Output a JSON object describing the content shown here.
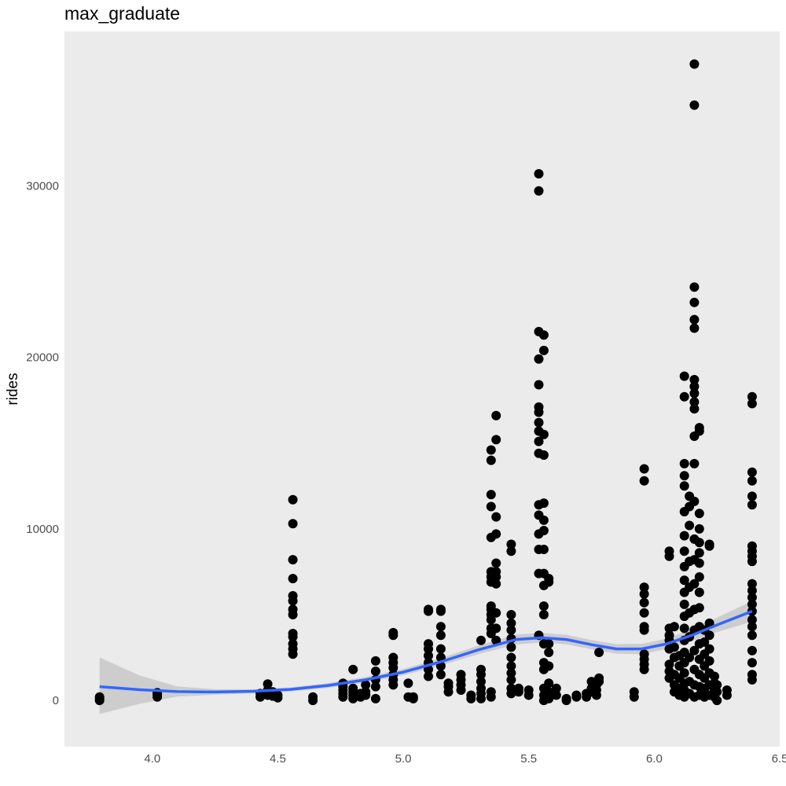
{
  "chart_data": {
    "type": "scatter",
    "title": "max_graduate",
    "xlabel": "",
    "ylabel": "rides",
    "xlim": [
      3.65,
      6.5
    ],
    "ylim": [
      -2700,
      39000
    ],
    "x_ticks": [
      "4.0",
      "4.5",
      "5.0",
      "5.5",
      "6.0",
      "6.5"
    ],
    "x_tick_values": [
      4.0,
      4.5,
      5.0,
      5.5,
      6.0,
      6.5
    ],
    "y_ticks": [
      "0",
      "10000",
      "20000",
      "30000"
    ],
    "y_tick_values": [
      0,
      10000,
      20000,
      30000
    ],
    "grid": false,
    "colors": {
      "panel": "#ebebeb",
      "points": "#000000",
      "smooth_line": "#3366ff",
      "confidence_band": "#c8c8c8"
    },
    "points": [
      [
        3.79,
        0
      ],
      [
        3.79,
        100
      ],
      [
        3.79,
        200
      ],
      [
        4.02,
        200
      ],
      [
        4.02,
        350
      ],
      [
        4.02,
        450
      ],
      [
        4.43,
        200
      ],
      [
        4.43,
        400
      ],
      [
        4.46,
        300
      ],
      [
        4.46,
        600
      ],
      [
        4.46,
        950
      ],
      [
        4.48,
        250
      ],
      [
        4.48,
        500
      ],
      [
        4.5,
        150
      ],
      [
        4.5,
        300
      ],
      [
        4.56,
        2700
      ],
      [
        4.56,
        3000
      ],
      [
        4.56,
        3300
      ],
      [
        4.56,
        3700
      ],
      [
        4.56,
        3900
      ],
      [
        4.56,
        5000
      ],
      [
        4.56,
        5300
      ],
      [
        4.56,
        5800
      ],
      [
        4.56,
        6100
      ],
      [
        4.56,
        7100
      ],
      [
        4.56,
        8200
      ],
      [
        4.56,
        10300
      ],
      [
        4.56,
        11700
      ],
      [
        4.64,
        0
      ],
      [
        4.64,
        200
      ],
      [
        4.76,
        200
      ],
      [
        4.76,
        400
      ],
      [
        4.76,
        600
      ],
      [
        4.76,
        800
      ],
      [
        4.76,
        1000
      ],
      [
        4.8,
        100
      ],
      [
        4.8,
        300
      ],
      [
        4.8,
        500
      ],
      [
        4.8,
        700
      ],
      [
        4.8,
        1800
      ],
      [
        4.83,
        200
      ],
      [
        4.83,
        400
      ],
      [
        4.85,
        300
      ],
      [
        4.85,
        500
      ],
      [
        4.85,
        900
      ],
      [
        4.89,
        100
      ],
      [
        4.89,
        800
      ],
      [
        4.89,
        1200
      ],
      [
        4.89,
        1700
      ],
      [
        4.89,
        2300
      ],
      [
        4.96,
        900
      ],
      [
        4.96,
        1200
      ],
      [
        4.96,
        1500
      ],
      [
        4.96,
        1900
      ],
      [
        4.96,
        2200
      ],
      [
        4.96,
        2500
      ],
      [
        4.96,
        3800
      ],
      [
        4.96,
        3950
      ],
      [
        5.02,
        200
      ],
      [
        5.02,
        1000
      ],
      [
        5.04,
        100
      ],
      [
        5.04,
        200
      ],
      [
        5.1,
        1400
      ],
      [
        5.1,
        1800
      ],
      [
        5.1,
        2200
      ],
      [
        5.1,
        2600
      ],
      [
        5.1,
        3000
      ],
      [
        5.1,
        3300
      ],
      [
        5.1,
        5200
      ],
      [
        5.1,
        5300
      ],
      [
        5.15,
        1500
      ],
      [
        5.15,
        2000
      ],
      [
        5.15,
        2500
      ],
      [
        5.15,
        3000
      ],
      [
        5.15,
        3800
      ],
      [
        5.15,
        4300
      ],
      [
        5.15,
        5200
      ],
      [
        5.15,
        5300
      ],
      [
        5.18,
        500
      ],
      [
        5.18,
        800
      ],
      [
        5.18,
        1000
      ],
      [
        5.23,
        600
      ],
      [
        5.23,
        900
      ],
      [
        5.23,
        1200
      ],
      [
        5.23,
        1500
      ],
      [
        5.27,
        100
      ],
      [
        5.27,
        300
      ],
      [
        5.31,
        100
      ],
      [
        5.31,
        400
      ],
      [
        5.31,
        700
      ],
      [
        5.31,
        1100
      ],
      [
        5.31,
        1500
      ],
      [
        5.31,
        1800
      ],
      [
        5.31,
        3500
      ],
      [
        5.35,
        200
      ],
      [
        5.35,
        500
      ],
      [
        5.35,
        3900
      ],
      [
        5.35,
        4200
      ],
      [
        5.35,
        4700
      ],
      [
        5.35,
        5000
      ],
      [
        5.35,
        5300
      ],
      [
        5.35,
        5500
      ],
      [
        5.35,
        6900
      ],
      [
        5.35,
        7200
      ],
      [
        5.35,
        7500
      ],
      [
        5.35,
        9500
      ],
      [
        5.35,
        11300
      ],
      [
        5.35,
        12000
      ],
      [
        5.35,
        14000
      ],
      [
        5.35,
        14600
      ],
      [
        5.37,
        3500
      ],
      [
        5.37,
        4200
      ],
      [
        5.37,
        5100
      ],
      [
        5.37,
        6800
      ],
      [
        5.37,
        7200
      ],
      [
        5.37,
        7500
      ],
      [
        5.37,
        8000
      ],
      [
        5.37,
        9700
      ],
      [
        5.37,
        10700
      ],
      [
        5.37,
        15200
      ],
      [
        5.37,
        16600
      ],
      [
        5.43,
        400
      ],
      [
        5.43,
        700
      ],
      [
        5.43,
        1200
      ],
      [
        5.43,
        1600
      ],
      [
        5.43,
        2000
      ],
      [
        5.43,
        2500
      ],
      [
        5.43,
        3100
      ],
      [
        5.43,
        3600
      ],
      [
        5.43,
        4100
      ],
      [
        5.43,
        4500
      ],
      [
        5.43,
        5000
      ],
      [
        5.43,
        8700
      ],
      [
        5.43,
        9100
      ],
      [
        5.46,
        500
      ],
      [
        5.46,
        700
      ],
      [
        5.5,
        300
      ],
      [
        5.5,
        600
      ],
      [
        5.54,
        3800
      ],
      [
        5.54,
        7400
      ],
      [
        5.54,
        8800
      ],
      [
        5.54,
        9700
      ],
      [
        5.54,
        10800
      ],
      [
        5.54,
        11400
      ],
      [
        5.54,
        14400
      ],
      [
        5.54,
        15100
      ],
      [
        5.54,
        15700
      ],
      [
        5.54,
        16200
      ],
      [
        5.54,
        16800
      ],
      [
        5.54,
        17100
      ],
      [
        5.54,
        18400
      ],
      [
        5.54,
        19900
      ],
      [
        5.54,
        21500
      ],
      [
        5.54,
        29700
      ],
      [
        5.54,
        30700
      ],
      [
        5.56,
        0
      ],
      [
        5.56,
        300
      ],
      [
        5.56,
        700
      ],
      [
        5.56,
        1800
      ],
      [
        5.56,
        2200
      ],
      [
        5.56,
        3300
      ],
      [
        5.56,
        5000
      ],
      [
        5.56,
        5500
      ],
      [
        5.56,
        6700
      ],
      [
        5.56,
        7400
      ],
      [
        5.56,
        8800
      ],
      [
        5.56,
        9900
      ],
      [
        5.56,
        10500
      ],
      [
        5.56,
        11500
      ],
      [
        5.56,
        14300
      ],
      [
        5.56,
        15500
      ],
      [
        5.56,
        20400
      ],
      [
        5.56,
        21300
      ],
      [
        5.58,
        100
      ],
      [
        5.58,
        500
      ],
      [
        5.58,
        1000
      ],
      [
        5.58,
        2000
      ],
      [
        5.58,
        2800
      ],
      [
        5.58,
        3300
      ],
      [
        5.58,
        6900
      ],
      [
        5.58,
        7100
      ],
      [
        5.61,
        300
      ],
      [
        5.61,
        700
      ],
      [
        5.65,
        0
      ],
      [
        5.65,
        100
      ],
      [
        5.69,
        200
      ],
      [
        5.69,
        300
      ],
      [
        5.73,
        200
      ],
      [
        5.73,
        400
      ],
      [
        5.75,
        500
      ],
      [
        5.75,
        700
      ],
      [
        5.75,
        1100
      ],
      [
        5.77,
        300
      ],
      [
        5.77,
        600
      ],
      [
        5.77,
        900
      ],
      [
        5.78,
        1100
      ],
      [
        5.78,
        1300
      ],
      [
        5.78,
        2800
      ],
      [
        5.92,
        200
      ],
      [
        5.92,
        500
      ],
      [
        5.96,
        1800
      ],
      [
        5.96,
        2100
      ],
      [
        5.96,
        2400
      ],
      [
        5.96,
        2700
      ],
      [
        5.96,
        4100
      ],
      [
        5.96,
        4300
      ],
      [
        5.96,
        5100
      ],
      [
        5.96,
        5700
      ],
      [
        5.96,
        6200
      ],
      [
        5.96,
        6600
      ],
      [
        5.96,
        12800
      ],
      [
        5.96,
        13500
      ],
      [
        6.06,
        1300
      ],
      [
        6.06,
        1700
      ],
      [
        6.06,
        2100
      ],
      [
        6.06,
        3000
      ],
      [
        6.06,
        3500
      ],
      [
        6.06,
        3800
      ],
      [
        6.06,
        4200
      ],
      [
        6.06,
        8400
      ],
      [
        6.06,
        8700
      ],
      [
        6.08,
        500
      ],
      [
        6.08,
        900
      ],
      [
        6.08,
        1500
      ],
      [
        6.08,
        2500
      ],
      [
        6.08,
        3100
      ],
      [
        6.08,
        4300
      ],
      [
        6.1,
        300
      ],
      [
        6.1,
        700
      ],
      [
        6.1,
        1300
      ],
      [
        6.1,
        2000
      ],
      [
        6.1,
        2600
      ],
      [
        6.12,
        200
      ],
      [
        6.12,
        600
      ],
      [
        6.12,
        1000
      ],
      [
        6.12,
        1600
      ],
      [
        6.12,
        2200
      ],
      [
        6.12,
        2800
      ],
      [
        6.12,
        3500
      ],
      [
        6.12,
        4200
      ],
      [
        6.12,
        4900
      ],
      [
        6.12,
        5600
      ],
      [
        6.12,
        6300
      ],
      [
        6.12,
        7000
      ],
      [
        6.12,
        7800
      ],
      [
        6.12,
        8700
      ],
      [
        6.12,
        9600
      ],
      [
        6.12,
        11000
      ],
      [
        6.12,
        12500
      ],
      [
        6.12,
        13100
      ],
      [
        6.12,
        13800
      ],
      [
        6.12,
        17700
      ],
      [
        6.12,
        18900
      ],
      [
        6.14,
        400
      ],
      [
        6.14,
        1100
      ],
      [
        6.14,
        2500
      ],
      [
        6.14,
        3700
      ],
      [
        6.14,
        5100
      ],
      [
        6.14,
        6600
      ],
      [
        6.14,
        8100
      ],
      [
        6.14,
        10200
      ],
      [
        6.14,
        11300
      ],
      [
        6.14,
        11900
      ],
      [
        6.16,
        200
      ],
      [
        6.16,
        900
      ],
      [
        6.16,
        1800
      ],
      [
        6.16,
        2900
      ],
      [
        6.16,
        4100
      ],
      [
        6.16,
        5300
      ],
      [
        6.16,
        6800
      ],
      [
        6.16,
        8200
      ],
      [
        6.16,
        9400
      ],
      [
        6.16,
        11600
      ],
      [
        6.16,
        13800
      ],
      [
        6.16,
        15400
      ],
      [
        6.16,
        17000
      ],
      [
        6.16,
        17400
      ],
      [
        6.16,
        17900
      ],
      [
        6.16,
        18300
      ],
      [
        6.16,
        18700
      ],
      [
        6.16,
        21700
      ],
      [
        6.16,
        22200
      ],
      [
        6.16,
        23200
      ],
      [
        6.16,
        24100
      ],
      [
        6.16,
        34700
      ],
      [
        6.16,
        37100
      ],
      [
        6.18,
        300
      ],
      [
        6.18,
        800
      ],
      [
        6.18,
        1500
      ],
      [
        6.18,
        2400
      ],
      [
        6.18,
        3300
      ],
      [
        6.18,
        4300
      ],
      [
        6.18,
        5400
      ],
      [
        6.18,
        6300
      ],
      [
        6.18,
        7200
      ],
      [
        6.18,
        8000
      ],
      [
        6.18,
        8600
      ],
      [
        6.18,
        9200
      ],
      [
        6.18,
        10000
      ],
      [
        6.18,
        10900
      ],
      [
        6.18,
        15700
      ],
      [
        6.18,
        15900
      ],
      [
        6.2,
        200
      ],
      [
        6.2,
        700
      ],
      [
        6.2,
        1300
      ],
      [
        6.2,
        2000
      ],
      [
        6.2,
        2700
      ],
      [
        6.2,
        3400
      ],
      [
        6.2,
        4100
      ],
      [
        6.22,
        300
      ],
      [
        6.22,
        900
      ],
      [
        6.22,
        1600
      ],
      [
        6.22,
        2300
      ],
      [
        6.22,
        3000
      ],
      [
        6.22,
        3800
      ],
      [
        6.22,
        4500
      ],
      [
        6.22,
        9000
      ],
      [
        6.22,
        9100
      ],
      [
        6.24,
        200
      ],
      [
        6.24,
        600
      ],
      [
        6.24,
        1000
      ],
      [
        6.24,
        1400
      ],
      [
        6.25,
        0
      ],
      [
        6.25,
        500
      ],
      [
        6.25,
        900
      ],
      [
        6.29,
        300
      ],
      [
        6.29,
        600
      ],
      [
        6.39,
        1200
      ],
      [
        6.39,
        1500
      ],
      [
        6.39,
        2200
      ],
      [
        6.39,
        2900
      ],
      [
        6.39,
        3800
      ],
      [
        6.39,
        4300
      ],
      [
        6.39,
        4700
      ],
      [
        6.39,
        5200
      ],
      [
        6.39,
        5600
      ],
      [
        6.39,
        6000
      ],
      [
        6.39,
        6400
      ],
      [
        6.39,
        6800
      ],
      [
        6.39,
        8100
      ],
      [
        6.39,
        8400
      ],
      [
        6.39,
        8700
      ],
      [
        6.39,
        9000
      ],
      [
        6.39,
        11400
      ],
      [
        6.39,
        11900
      ],
      [
        6.39,
        12800
      ],
      [
        6.39,
        13300
      ],
      [
        6.39,
        17300
      ],
      [
        6.39,
        17700
      ]
    ],
    "smooth": {
      "x": [
        3.79,
        3.95,
        4.1,
        4.25,
        4.4,
        4.55,
        4.7,
        4.85,
        5.0,
        5.15,
        5.3,
        5.45,
        5.55,
        5.65,
        5.75,
        5.85,
        5.95,
        6.05,
        6.15,
        6.25,
        6.39
      ],
      "y": [
        800,
        620,
        510,
        490,
        530,
        640,
        870,
        1200,
        1650,
        2250,
        2950,
        3550,
        3650,
        3550,
        3250,
        3000,
        3000,
        3300,
        3800,
        4400,
        5200
      ],
      "lower": [
        -800,
        -200,
        220,
        330,
        410,
        520,
        730,
        1040,
        1470,
        2040,
        2700,
        3260,
        3370,
        3270,
        2980,
        2720,
        2700,
        3000,
        3460,
        3980,
        4600
      ],
      "upper": [
        2500,
        1450,
        810,
        650,
        650,
        760,
        1010,
        1360,
        1830,
        2460,
        3200,
        3840,
        3930,
        3830,
        3520,
        3280,
        3300,
        3600,
        4140,
        4820,
        5800
      ]
    }
  }
}
